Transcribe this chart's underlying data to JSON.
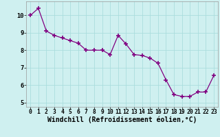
{
  "x": [
    0,
    1,
    2,
    3,
    4,
    5,
    6,
    7,
    8,
    9,
    10,
    11,
    12,
    13,
    14,
    15,
    16,
    17,
    18,
    19,
    20,
    21,
    22,
    23
  ],
  "y": [
    10.0,
    10.4,
    9.1,
    8.85,
    8.7,
    8.55,
    8.4,
    8.0,
    8.0,
    8.0,
    7.75,
    8.85,
    8.35,
    7.75,
    7.7,
    7.55,
    7.25,
    6.3,
    5.45,
    5.35,
    5.35,
    5.6,
    5.6,
    6.55
  ],
  "line_color": "#800080",
  "marker": "+",
  "marker_size": 5,
  "marker_lw": 1.2,
  "bg_color": "#cff0f0",
  "grid_color": "#aadddd",
  "xlabel": "Windchill (Refroidissement éolien,°C)",
  "xlim": [
    -0.5,
    23.5
  ],
  "ylim": [
    4.75,
    10.8
  ],
  "yticks": [
    5,
    6,
    7,
    8,
    9,
    10
  ],
  "xticks": [
    0,
    1,
    2,
    3,
    4,
    5,
    6,
    7,
    8,
    9,
    10,
    11,
    12,
    13,
    14,
    15,
    16,
    17,
    18,
    19,
    20,
    21,
    22,
    23
  ],
  "tick_fontsize": 5.8,
  "xlabel_fontsize": 7.0
}
